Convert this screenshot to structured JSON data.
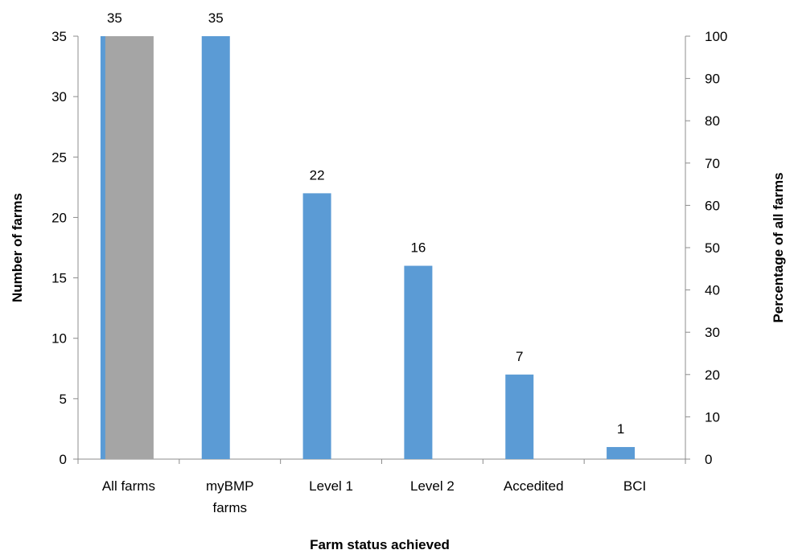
{
  "chart_data": {
    "type": "bar",
    "title": "",
    "categories": [
      [
        "All farms"
      ],
      [
        "myBMP",
        "farms"
      ],
      [
        "Level 1"
      ],
      [
        "Level 2"
      ],
      [
        "Accedited"
      ],
      [
        "BCI"
      ]
    ],
    "series": [
      {
        "values": [
          35,
          35,
          22,
          16,
          7,
          1
        ],
        "color": "#5b9bd5",
        "axis": "left"
      },
      {
        "values": [
          100,
          null,
          null,
          null,
          null,
          null
        ],
        "color": "#a5a5a5",
        "axis": "right"
      }
    ],
    "data_labels": [
      35,
      35,
      22,
      16,
      7,
      1
    ],
    "xlabel": "Farm status achieved",
    "ylabel": "Number of farms",
    "y2label": "Percentage of all farms",
    "ylim": [
      0,
      35
    ],
    "yticks": [
      0,
      5,
      10,
      15,
      20,
      25,
      30,
      35
    ],
    "y2lim": [
      0,
      100
    ],
    "y2ticks": [
      0,
      10,
      20,
      30,
      40,
      50,
      60,
      70,
      80,
      90,
      100
    ],
    "grid": false,
    "legend": "none"
  }
}
